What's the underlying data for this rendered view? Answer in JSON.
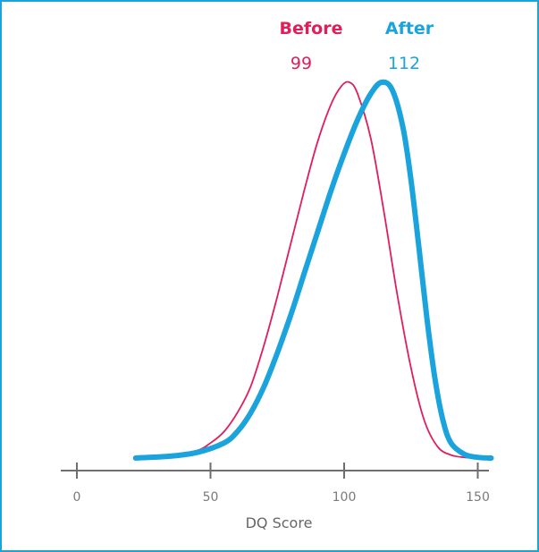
{
  "chart_data": {
    "type": "line",
    "title": "",
    "xlabel": "DQ Score",
    "ylabel": "",
    "xlim": [
      0,
      155
    ],
    "x_ticks": [
      0,
      50,
      100,
      150
    ],
    "grid": false,
    "legend_position": "top",
    "series": [
      {
        "name": "Before",
        "label_value": "99",
        "color": "#e01e5a",
        "line_style": "thin",
        "points": [
          [
            25,
            0
          ],
          [
            35,
            0.005
          ],
          [
            45,
            0.02
          ],
          [
            50,
            0.04
          ],
          [
            55,
            0.07
          ],
          [
            60,
            0.12
          ],
          [
            65,
            0.19
          ],
          [
            70,
            0.3
          ],
          [
            75,
            0.43
          ],
          [
            80,
            0.57
          ],
          [
            85,
            0.71
          ],
          [
            90,
            0.84
          ],
          [
            95,
            0.94
          ],
          [
            99,
            0.99
          ],
          [
            102,
            1.0
          ],
          [
            105,
            0.97
          ],
          [
            110,
            0.85
          ],
          [
            115,
            0.65
          ],
          [
            120,
            0.43
          ],
          [
            125,
            0.24
          ],
          [
            130,
            0.1
          ],
          [
            135,
            0.03
          ],
          [
            140,
            0.008
          ],
          [
            145,
            0.002
          ],
          [
            150,
            0
          ]
        ]
      },
      {
        "name": "After",
        "label_value": "112",
        "color": "#1aa3dc",
        "line_style": "thick",
        "points": [
          [
            22,
            0
          ],
          [
            35,
            0.005
          ],
          [
            45,
            0.015
          ],
          [
            55,
            0.04
          ],
          [
            60,
            0.07
          ],
          [
            65,
            0.12
          ],
          [
            70,
            0.19
          ],
          [
            75,
            0.28
          ],
          [
            80,
            0.38
          ],
          [
            85,
            0.49
          ],
          [
            90,
            0.6
          ],
          [
            95,
            0.71
          ],
          [
            100,
            0.81
          ],
          [
            105,
            0.9
          ],
          [
            110,
            0.97
          ],
          [
            114,
            1.0
          ],
          [
            118,
            0.98
          ],
          [
            122,
            0.88
          ],
          [
            125,
            0.74
          ],
          [
            128,
            0.56
          ],
          [
            131,
            0.37
          ],
          [
            134,
            0.21
          ],
          [
            137,
            0.1
          ],
          [
            140,
            0.04
          ],
          [
            145,
            0.01
          ],
          [
            150,
            0.002
          ],
          [
            155,
            0
          ]
        ]
      }
    ]
  }
}
